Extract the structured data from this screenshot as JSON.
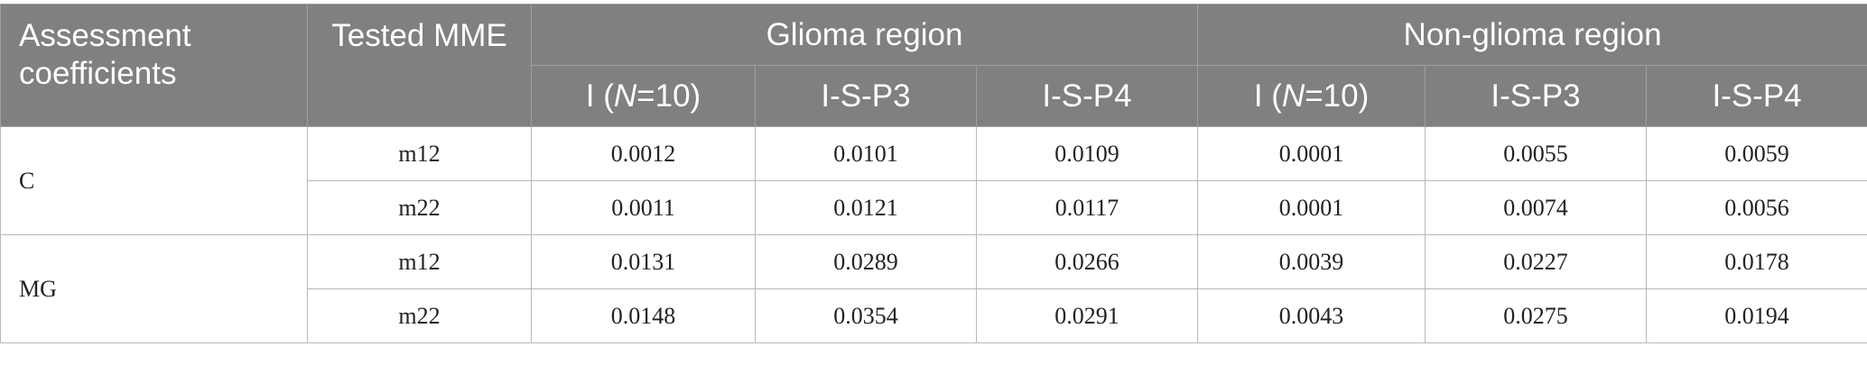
{
  "header": {
    "assessment_coefficients": "Assessment coefficients",
    "tested_mme": "Tested MME",
    "glioma_region": "Glioma region",
    "non_glioma_region": "Non-glioma region",
    "subcolumns": [
      {
        "pre": "I (",
        "italic": "N",
        "post": "=10)"
      },
      {
        "label": "I-S-P3"
      },
      {
        "label": "I-S-P4"
      },
      {
        "pre": "I (",
        "italic": "N",
        "post": "=10)"
      },
      {
        "label": "I-S-P3"
      },
      {
        "label": "I-S-P4"
      }
    ]
  },
  "groups": [
    {
      "coefficient": "C",
      "rows": [
        {
          "mme": "m12",
          "values": [
            "0.0012",
            "0.0101",
            "0.0109",
            "0.0001",
            "0.0055",
            "0.0059"
          ]
        },
        {
          "mme": "m22",
          "values": [
            "0.0011",
            "0.0121",
            "0.0117",
            "0.0001",
            "0.0074",
            "0.0056"
          ]
        }
      ]
    },
    {
      "coefficient": "MG",
      "rows": [
        {
          "mme": "m12",
          "values": [
            "0.0131",
            "0.0289",
            "0.0266",
            "0.0039",
            "0.0227",
            "0.0178"
          ]
        },
        {
          "mme": "m22",
          "values": [
            "0.0148",
            "0.0354",
            "0.0291",
            "0.0043",
            "0.0275",
            "0.0194"
          ]
        }
      ]
    }
  ],
  "colors": {
    "header_bg": "#808080",
    "header_text": "#ffffff",
    "grid_line": "#b8b8b8"
  }
}
